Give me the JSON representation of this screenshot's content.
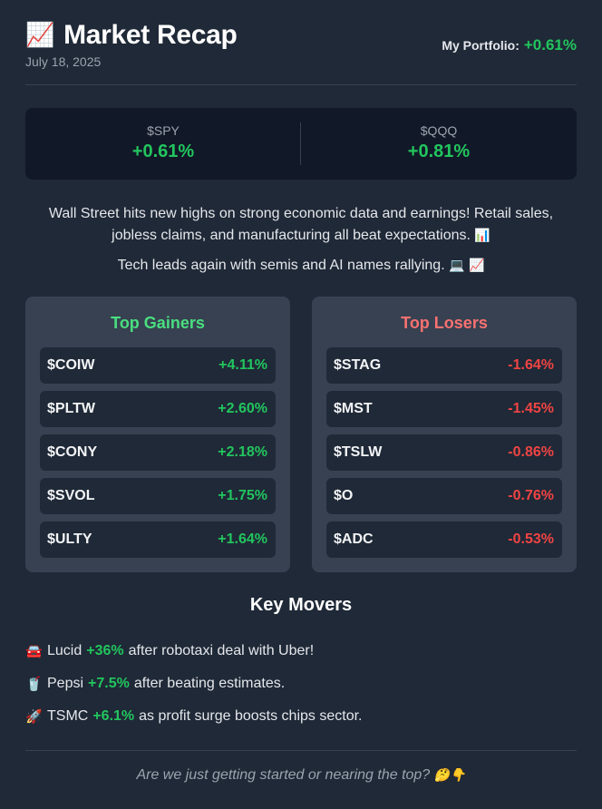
{
  "header": {
    "icon": "chart-increasing-icon",
    "icon_glyph": "📈",
    "title": "Market Recap",
    "date": "July 18, 2025",
    "portfolio_label": "My Portfolio:",
    "portfolio_value": "+0.61%"
  },
  "indices": [
    {
      "symbol": "$SPY",
      "change": "+0.61%"
    },
    {
      "symbol": "$QQQ",
      "change": "+0.81%"
    }
  ],
  "summary": {
    "line1": "Wall Street hits new highs on strong economic data and earnings! Retail sales, jobless claims, and manufacturing all beat expectations.",
    "line1_icon": "📊",
    "line2": "Tech leads again with semis and AI names rallying.",
    "line2_icons": "💻 📈"
  },
  "gainers": {
    "title": "Top Gainers",
    "items": [
      {
        "ticker": "$COIW",
        "change": "+4.11%"
      },
      {
        "ticker": "$PLTW",
        "change": "+2.60%"
      },
      {
        "ticker": "$CONY",
        "change": "+2.18%"
      },
      {
        "ticker": "$SVOL",
        "change": "+1.75%"
      },
      {
        "ticker": "$ULTY",
        "change": "+1.64%"
      }
    ]
  },
  "losers": {
    "title": "Top Losers",
    "items": [
      {
        "ticker": "$STAG",
        "change": "-1.64%"
      },
      {
        "ticker": "$MST",
        "change": "-1.45%"
      },
      {
        "ticker": "$TSLW",
        "change": "-0.86%"
      },
      {
        "ticker": "$O",
        "change": "-0.76%"
      },
      {
        "ticker": "$ADC",
        "change": "-0.53%"
      }
    ]
  },
  "movers": {
    "title": "Key Movers",
    "items": [
      {
        "icon": "car-icon",
        "glyph": "🚘",
        "name": "Lucid",
        "gain": "+36%",
        "text": "after robotaxi deal with Uber!"
      },
      {
        "icon": "drink-icon",
        "glyph": "🥤",
        "name": "Pepsi",
        "gain": "+7.5%",
        "text": "after beating estimates."
      },
      {
        "icon": "rocket-icon",
        "glyph": "🚀",
        "name": "TSMC",
        "gain": "+6.1%",
        "text": "as profit surge boosts chips sector."
      }
    ]
  },
  "footer": {
    "question": "Are we just getting started or nearing the top?",
    "icons": "🤔👇"
  },
  "colors": {
    "background": "#1f2937",
    "positive": "#22c55e",
    "negative": "#ef4444"
  }
}
